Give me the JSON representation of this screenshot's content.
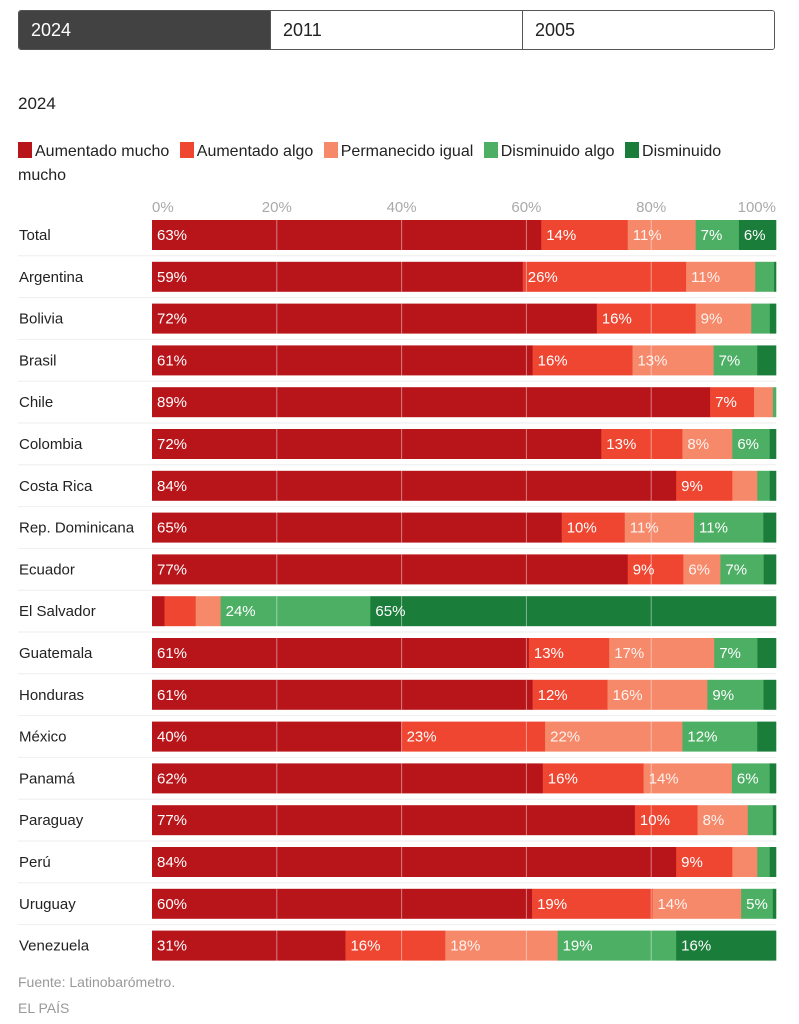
{
  "tabs": [
    {
      "label": "2024",
      "active": true
    },
    {
      "label": "2011",
      "active": false
    },
    {
      "label": "2005",
      "active": false
    }
  ],
  "subtitle": "2024",
  "colors": {
    "aumentado_mucho": "#b8151b",
    "aumentado_algo": "#ef4631",
    "permanecido_igual": "#f6896a",
    "disminuido_algo": "#4caf64",
    "disminuido_mucho": "#1a7d3a"
  },
  "footer": {
    "source": "Fuente: Latinobarómetro.",
    "brand": "EL PAÍS"
  },
  "chart_data": {
    "type": "bar",
    "orientation": "horizontal",
    "stacked": true,
    "title": "2024",
    "xlabel": "",
    "ylabel": "",
    "xlim": [
      0,
      100
    ],
    "x_ticks": [
      "0%",
      "20%",
      "40%",
      "60%",
      "80%",
      "100%"
    ],
    "grid": true,
    "legend": "top",
    "categories": [
      "Total",
      "Argentina",
      "Bolivia",
      "Brasil",
      "Chile",
      "Colombia",
      "Costa Rica",
      "Rep. Dominicana",
      "Ecuador",
      "El Salvador",
      "Guatemala",
      "Honduras",
      "México",
      "Panamá",
      "Paraguay",
      "Perú",
      "Uruguay",
      "Venezuela"
    ],
    "series": [
      {
        "name": "Aumentado mucho",
        "values": [
          63,
          59,
          72,
          61,
          89,
          72,
          84,
          65,
          77,
          2,
          61,
          61,
          40,
          62,
          77,
          84,
          60,
          31
        ]
      },
      {
        "name": "Aumentado algo",
        "values": [
          14,
          26,
          16,
          16,
          7,
          13,
          9,
          10,
          9,
          5,
          13,
          12,
          23,
          16,
          10,
          9,
          19,
          16
        ]
      },
      {
        "name": "Permanecido igual",
        "values": [
          11,
          11,
          9,
          13,
          3,
          8,
          4,
          11,
          6,
          4,
          17,
          16,
          22,
          14,
          8,
          4,
          14,
          18
        ]
      },
      {
        "name": "Disminuido algo",
        "values": [
          7,
          3,
          3,
          7,
          0.5,
          6,
          2,
          11,
          7,
          24,
          7,
          9,
          12,
          6,
          4,
          2,
          5,
          19
        ]
      },
      {
        "name": "Disminuido mucho",
        "values": [
          6,
          0.3,
          1,
          3,
          0,
          1,
          1,
          2,
          2,
          65,
          3,
          2,
          3,
          1,
          0.5,
          1,
          0.5,
          16
        ]
      }
    ],
    "labels": [
      [
        "63%",
        "14%",
        "11%",
        "7%",
        "6%"
      ],
      [
        "59%",
        "26%",
        "11%",
        "",
        ""
      ],
      [
        "72%",
        "16%",
        "9%",
        "",
        ""
      ],
      [
        "61%",
        "16%",
        "13%",
        "7%",
        ""
      ],
      [
        "89%",
        "7%",
        "",
        "",
        ""
      ],
      [
        "72%",
        "13%",
        "8%",
        "6%",
        ""
      ],
      [
        "84%",
        "9%",
        "",
        "",
        ""
      ],
      [
        "65%",
        "10%",
        "11%",
        "11%",
        ""
      ],
      [
        "77%",
        "9%",
        "6%",
        "7%",
        ""
      ],
      [
        "",
        "",
        "",
        "24%",
        "65%"
      ],
      [
        "61%",
        "13%",
        "17%",
        "7%",
        ""
      ],
      [
        "61%",
        "12%",
        "16%",
        "9%",
        ""
      ],
      [
        "40%",
        "23%",
        "22%",
        "12%",
        ""
      ],
      [
        "62%",
        "16%",
        "14%",
        "6%",
        ""
      ],
      [
        "77%",
        "10%",
        "8%",
        "",
        ""
      ],
      [
        "84%",
        "9%",
        "",
        "",
        ""
      ],
      [
        "60%",
        "19%",
        "14%",
        "5%",
        ""
      ],
      [
        "31%",
        "16%",
        "18%",
        "19%",
        "16%"
      ]
    ]
  }
}
